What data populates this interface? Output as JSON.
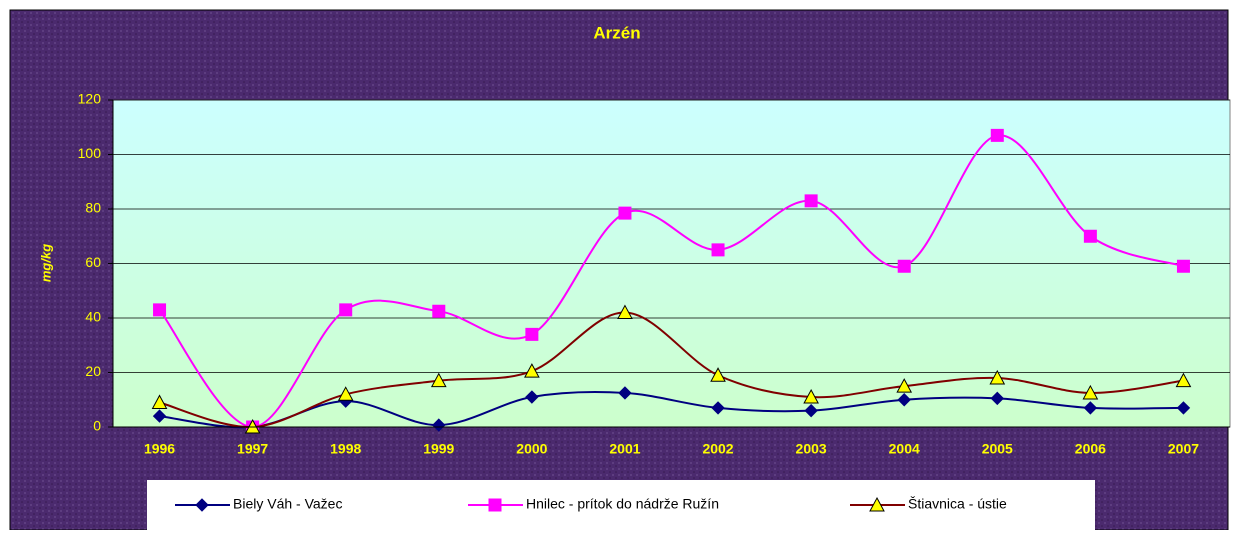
{
  "chart_data": {
    "type": "line",
    "title": "Arzén",
    "y_label": "mg/kg",
    "categories": [
      "1996",
      "1997",
      "1998",
      "1999",
      "2000",
      "2001",
      "2002",
      "2003",
      "2004",
      "2005",
      "2006",
      "2007"
    ],
    "series": [
      {
        "name": "Biely Váh - Važec",
        "color": "#000080",
        "marker": "diamond",
        "values": [
          4,
          0,
          9.5,
          0.7,
          11,
          12.5,
          7,
          6,
          10,
          10.5,
          7,
          7
        ]
      },
      {
        "name": "Hnilec - prítok do nádrže Ružín",
        "color": "#ff00ff",
        "marker": "square",
        "values": [
          43,
          0,
          43,
          42.5,
          34,
          78.5,
          65,
          83,
          59,
          107,
          70,
          59
        ]
      },
      {
        "name": "Štiavnica - ústie",
        "color": "#800000",
        "marker": "triangle",
        "values": [
          9,
          0,
          12,
          17,
          20.5,
          42,
          19,
          11,
          15,
          18,
          12.5,
          17
        ]
      }
    ],
    "ylim": [
      0,
      120
    ],
    "yticks": [
      0,
      20,
      40,
      60,
      80,
      100,
      120
    ],
    "grid": true,
    "smooth": true,
    "legend": "bottom"
  }
}
